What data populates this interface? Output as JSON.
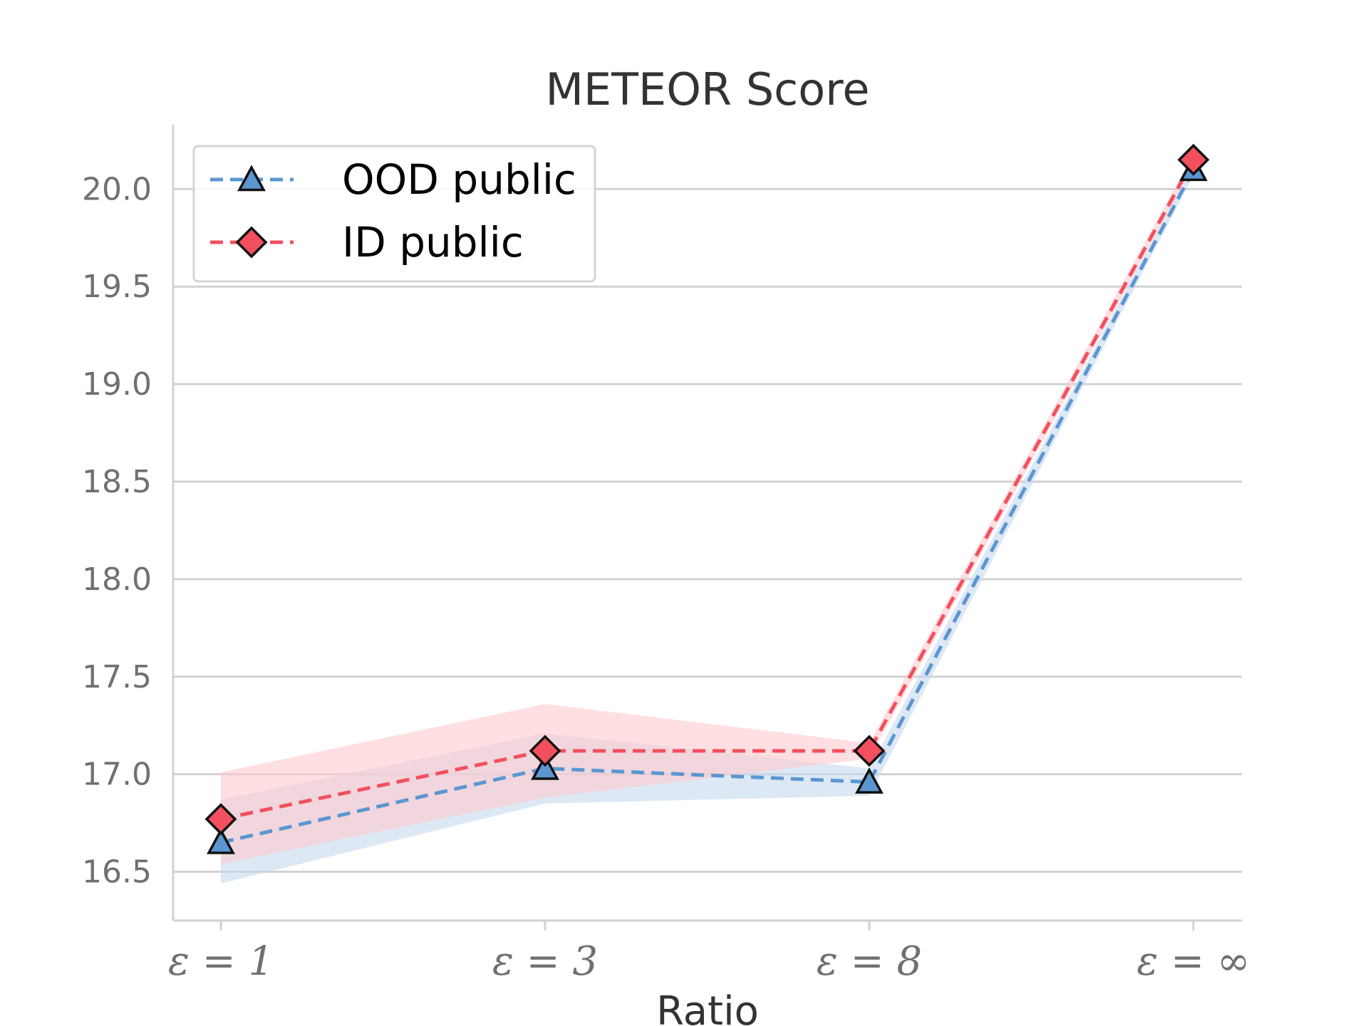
{
  "chart_data": {
    "type": "line",
    "title": "METEOR Score",
    "xlabel": "Ratio",
    "ylabel": "",
    "categories": [
      "ε = 1",
      "ε = 3",
      "ε = 8",
      "ε = ∞"
    ],
    "ylim": [
      16.25,
      20.33
    ],
    "yticks": [
      16.5,
      17.0,
      17.5,
      18.0,
      18.5,
      19.0,
      19.5,
      20.0
    ],
    "ytick_labels": [
      "16.5",
      "17.0",
      "17.5",
      "18.0",
      "18.5",
      "19.0",
      "19.5",
      "20.0"
    ],
    "grid": "horizontal",
    "legend": "top-left",
    "series": [
      {
        "name": "OOD public",
        "color": "#5b96d0",
        "band_color": "#c6d9ef",
        "marker": "triangle",
        "values": [
          16.65,
          17.03,
          16.96,
          20.1
        ],
        "lower": [
          16.44,
          16.85,
          16.89,
          20.07
        ],
        "upper": [
          16.87,
          17.21,
          17.03,
          20.13
        ]
      },
      {
        "name": "ID public",
        "color": "#f2505e",
        "band_color": "#ffc9cf",
        "marker": "diamond",
        "values": [
          16.77,
          17.12,
          17.12,
          20.15
        ],
        "lower": [
          16.54,
          16.88,
          17.08,
          20.12
        ],
        "upper": [
          17.01,
          17.36,
          17.16,
          20.18
        ]
      }
    ]
  }
}
